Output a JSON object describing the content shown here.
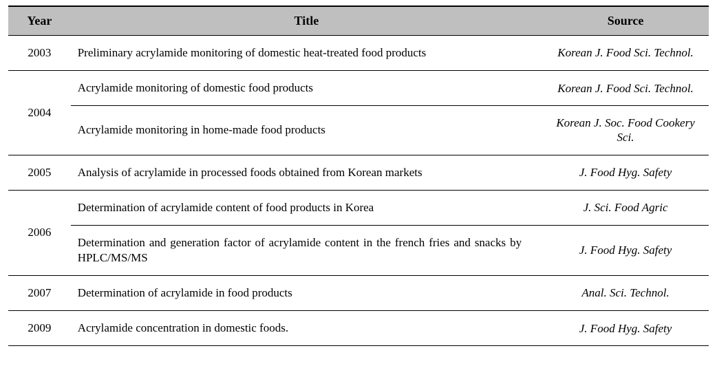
{
  "table": {
    "columns": {
      "year": "Year",
      "title": "Title",
      "source": "Source"
    },
    "header_bg": "#bfbfbf",
    "rows": [
      {
        "year": "2003",
        "title": "Preliminary acrylamide monitoring of domestic heat-treated food products",
        "source": "Korean J. Food Sci. Technol."
      },
      {
        "year": "2004",
        "title": "Acrylamide monitoring of domestic food products",
        "source": "Korean J. Food Sci. Technol."
      },
      {
        "year": "",
        "title": "Acrylamide monitoring in home-made food products",
        "source": "Korean J. Soc. Food Cookery Sci."
      },
      {
        "year": "2005",
        "title": "Analysis of acrylamide in processed foods obtained from Korean markets",
        "source": "J. Food Hyg. Safety"
      },
      {
        "year": "2006",
        "title": "Determination of acrylamide content of food products in Korea",
        "source": "J. Sci. Food Agric"
      },
      {
        "year": "",
        "title": "Determination and generation factor of acrylamide content in the french fries and snacks by HPLC/MS/MS",
        "source": "J. Food Hyg. Safety"
      },
      {
        "year": "2007",
        "title": "Determination of acrylamide in food products",
        "source": "Anal. Sci. Technol."
      },
      {
        "year": "2009",
        "title": "Acrylamide concentration in domestic foods.",
        "source": "J. Food Hyg. Safety"
      }
    ]
  }
}
